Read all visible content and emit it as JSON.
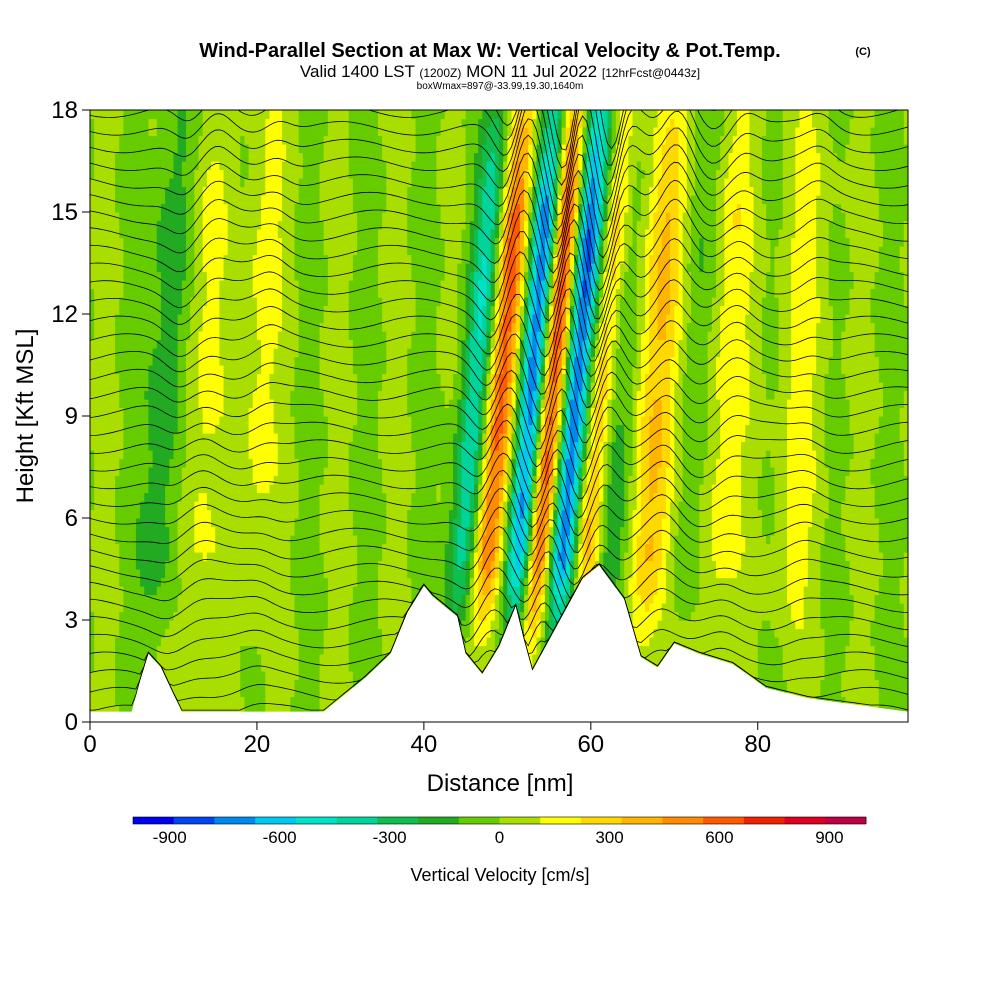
{
  "title": {
    "main": "Wind-Parallel Section at Max W: Vertical Velocity & Pot.Temp.",
    "copyright": "(C)",
    "valid_prefix": "Valid 1400 LST",
    "valid_z": "(1200Z)",
    "valid_date": "MON 11 Jul 2022",
    "forecast": "[12hrFcst@0443z]",
    "boxinfo": "boxWmax=897@-33.99,19.30,1640m"
  },
  "chart_data": {
    "type": "heatmap",
    "xlabel": "Distance [nm]",
    "ylabel": "Height [Kft MSL]",
    "xlim": [
      0,
      98
    ],
    "ylim": [
      0,
      18
    ],
    "x_ticks": [
      "0",
      "20",
      "40",
      "60",
      "80"
    ],
    "x_tick_values": [
      0,
      20,
      40,
      60,
      80
    ],
    "y_ticks": [
      "0",
      "3",
      "6",
      "9",
      "12",
      "15",
      "18"
    ],
    "y_tick_values": [
      0,
      3,
      6,
      9,
      12,
      15,
      18
    ],
    "colorbar": {
      "label": "Vertical Velocity [cm/s]",
      "tick_labels": [
        "-900",
        "-600",
        "-300",
        "0",
        "300",
        "600",
        "900"
      ],
      "tick_values": [
        -900,
        -600,
        -300,
        0,
        300,
        600,
        900
      ],
      "range": [
        -1000,
        1000
      ],
      "colors": [
        "#0000ee",
        "#0044ee",
        "#0088ee",
        "#00c8ee",
        "#00e2c8",
        "#00d49a",
        "#10be50",
        "#22aa22",
        "#66cc00",
        "#aade00",
        "#ffff00",
        "#ffd800",
        "#ffb400",
        "#ff8c00",
        "#ff5a00",
        "#ee2200",
        "#dd0022",
        "#bb0044"
      ]
    },
    "updraft_bands": [
      {
        "center_nm": 53,
        "peak_cm_s": 900
      },
      {
        "center_nm": 47,
        "peak_cm_s": 600
      },
      {
        "center_nm": 59,
        "peak_cm_s": 500
      },
      {
        "center_nm": 67,
        "peak_cm_s": 400
      },
      {
        "center_nm": 12,
        "peak_cm_s": 150
      },
      {
        "center_nm": 19,
        "peak_cm_s": 150
      },
      {
        "center_nm": 75,
        "peak_cm_s": 200
      },
      {
        "center_nm": 84,
        "peak_cm_s": 150
      }
    ],
    "downdraft_bands": [
      {
        "center_nm": 51,
        "peak_cm_s": -900
      },
      {
        "center_nm": 56,
        "peak_cm_s": -850
      },
      {
        "center_nm": 44,
        "peak_cm_s": -450
      },
      {
        "center_nm": 62,
        "peak_cm_s": -250
      },
      {
        "center_nm": 8,
        "peak_cm_s": -200
      },
      {
        "center_nm": 71,
        "peak_cm_s": -150
      }
    ],
    "terrain_kft": [
      [
        0,
        0.3
      ],
      [
        5,
        0.3
      ],
      [
        6,
        1.2
      ],
      [
        7,
        2.0
      ],
      [
        8.5,
        1.6
      ],
      [
        10,
        0.8
      ],
      [
        11,
        0.3
      ],
      [
        28,
        0.3
      ],
      [
        30,
        0.7
      ],
      [
        33,
        1.3
      ],
      [
        36,
        2.0
      ],
      [
        38,
        3.2
      ],
      [
        40,
        4.0
      ],
      [
        41,
        3.7
      ],
      [
        44,
        3.1
      ],
      [
        45,
        2.0
      ],
      [
        47,
        1.4
      ],
      [
        49,
        2.2
      ],
      [
        51,
        3.4
      ],
      [
        52,
        2.4
      ],
      [
        53,
        1.5
      ],
      [
        55,
        2.4
      ],
      [
        57,
        3.3
      ],
      [
        59,
        4.2
      ],
      [
        61,
        4.6
      ],
      [
        64,
        3.6
      ],
      [
        66,
        1.9
      ],
      [
        68,
        1.6
      ],
      [
        70,
        2.3
      ],
      [
        73,
        2.0
      ],
      [
        77,
        1.7
      ],
      [
        81,
        1.0
      ],
      [
        86,
        0.7
      ],
      [
        98,
        0.3
      ]
    ]
  }
}
